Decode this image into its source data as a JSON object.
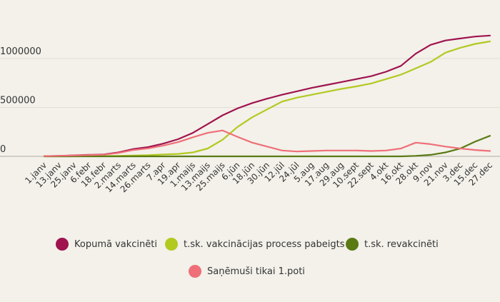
{
  "chart_data": {
    "type": "line",
    "title": "",
    "xlabel": "",
    "ylabel": "",
    "ylim": [
      0,
      1300000
    ],
    "yticks": [
      0,
      500000,
      1000000
    ],
    "ytick_labels": [
      "0",
      "500000",
      "1000000"
    ],
    "grid": true,
    "legend_placement": "bottom",
    "x_tick_labels": [
      "1.janv",
      "13.janv",
      "25.janv",
      "6.febr",
      "18.febr",
      "2.marts",
      "14.marts",
      "26.marts",
      "7.apr",
      "19.apr",
      "1.maijs",
      "13.maijs",
      "25.maijs",
      "6.jūn",
      "18.jūn",
      "30.jūn",
      "12.jūl",
      "24.jūl",
      "5.aug",
      "17.aug",
      "29.aug",
      "10.sept",
      "22.sept",
      "4.okt",
      "16.okt",
      "28.okt",
      "9.nov",
      "21.nov",
      "3.dec",
      "15.dec",
      "27.dec"
    ],
    "series": [
      {
        "name": "Kopumā vakcinēti",
        "color": "#a0134f",
        "values": [
          2000,
          5000,
          10000,
          15000,
          20000,
          40000,
          75000,
          95000,
          130000,
          175000,
          240000,
          330000,
          420000,
          490000,
          545000,
          590000,
          630000,
          665000,
          700000,
          730000,
          760000,
          790000,
          820000,
          865000,
          925000,
          1050000,
          1140000,
          1185000,
          1205000,
          1225000,
          1235000
        ]
      },
      {
        "name": "t.sk. vakcinācijas process pabeigts",
        "color": "#b2c920",
        "values": [
          0,
          0,
          1000,
          2000,
          3000,
          5000,
          8000,
          12000,
          20000,
          25000,
          40000,
          80000,
          170000,
          300000,
          400000,
          480000,
          560000,
          600000,
          630000,
          660000,
          690000,
          715000,
          745000,
          790000,
          835000,
          900000,
          965000,
          1060000,
          1110000,
          1150000,
          1175000
        ]
      },
      {
        "name": "t.sk. revakcinēti",
        "color": "#5a7a14",
        "values": [
          0,
          0,
          0,
          0,
          0,
          0,
          0,
          0,
          0,
          0,
          0,
          0,
          0,
          0,
          0,
          0,
          0,
          0,
          0,
          0,
          0,
          0,
          0,
          0,
          0,
          5000,
          15000,
          40000,
          80000,
          150000,
          210000
        ]
      },
      {
        "name": "Saņēmuši tikai 1.poti",
        "color": "#ef6f78",
        "values": [
          2000,
          5000,
          9000,
          13000,
          17000,
          35000,
          65000,
          82000,
          110000,
          145000,
          195000,
          240000,
          265000,
          200000,
          140000,
          100000,
          60000,
          50000,
          55000,
          60000,
          60000,
          60000,
          55000,
          60000,
          80000,
          140000,
          125000,
          100000,
          80000,
          65000,
          55000
        ]
      }
    ]
  }
}
